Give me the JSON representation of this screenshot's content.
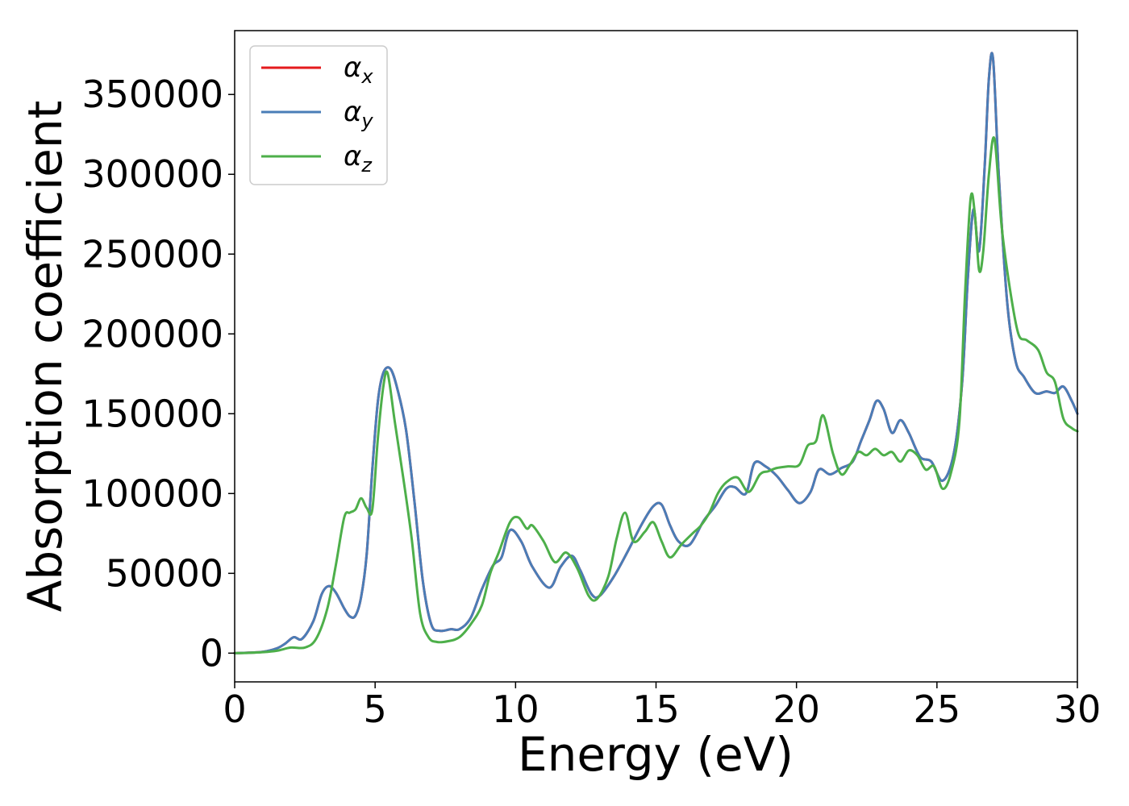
{
  "chart_data": {
    "type": "line",
    "title": "",
    "xlabel": "Energy (eV)",
    "ylabel": "Absorption coefficient",
    "xlim": [
      0,
      30
    ],
    "ylim": [
      -18000,
      390000
    ],
    "xticks": [
      0,
      5,
      10,
      15,
      20,
      25,
      30
    ],
    "yticks": [
      0,
      50000,
      100000,
      150000,
      200000,
      250000,
      300000,
      350000
    ],
    "grid": false,
    "legend_position": "top-left",
    "series": [
      {
        "name": "αx",
        "legend_base": "α",
        "legend_sub": "x",
        "color": "#e41a1c",
        "x": [
          0,
          0.5,
          1.0,
          1.5,
          1.8,
          2.1,
          2.4,
          2.8,
          3.1,
          3.35,
          3.6,
          3.9,
          4.1,
          4.3,
          4.5,
          4.7,
          4.9,
          5.1,
          5.3,
          5.55,
          5.8,
          6.1,
          6.4,
          6.7,
          7.0,
          7.3,
          7.7,
          8.0,
          8.4,
          8.8,
          9.2,
          9.5,
          9.8,
          10.2,
          10.6,
          11.2,
          11.6,
          12.0,
          12.3,
          12.7,
          13.0,
          13.5,
          14.0,
          14.5,
          14.9,
          15.2,
          15.5,
          15.8,
          16.2,
          16.7,
          17.1,
          17.5,
          17.8,
          18.2,
          18.5,
          18.9,
          19.3,
          19.7,
          20.1,
          20.5,
          20.8,
          21.2,
          21.6,
          22.0,
          22.3,
          22.6,
          22.85,
          23.1,
          23.4,
          23.7,
          24.0,
          24.4,
          24.8,
          25.2,
          25.6,
          25.9,
          26.1,
          26.3,
          26.5,
          26.7,
          26.85,
          27.0,
          27.2,
          27.5,
          27.8,
          28.1,
          28.5,
          28.9,
          29.2,
          29.5,
          29.8,
          30.0
        ],
        "y": [
          0,
          300,
          800,
          3000,
          6000,
          10000,
          9000,
          20000,
          37000,
          42000,
          38000,
          28000,
          23000,
          23500,
          35000,
          62000,
          115000,
          158000,
          176000,
          178000,
          165000,
          140000,
          95000,
          45000,
          18000,
          14000,
          15000,
          15000,
          22000,
          40000,
          55000,
          60000,
          77000,
          70000,
          54000,
          41000,
          54000,
          61000,
          52000,
          37000,
          36000,
          48000,
          64000,
          81000,
          92000,
          93000,
          80000,
          70000,
          68000,
          83000,
          92000,
          103000,
          104000,
          100000,
          119000,
          117000,
          111000,
          102000,
          94000,
          101000,
          115000,
          112000,
          116000,
          120000,
          133000,
          146000,
          158000,
          153000,
          138000,
          146000,
          138000,
          123000,
          120000,
          108000,
          125000,
          170000,
          235000,
          278000,
          252000,
          305000,
          360000,
          372000,
          300000,
          220000,
          183000,
          173000,
          163000,
          164000,
          163000,
          167000,
          158000,
          150000
        ]
      },
      {
        "name": "αy",
        "legend_base": "α",
        "legend_sub": "y",
        "color": "#4a7db7",
        "x": [
          0,
          0.5,
          1.0,
          1.5,
          1.8,
          2.1,
          2.4,
          2.8,
          3.1,
          3.35,
          3.6,
          3.9,
          4.1,
          4.3,
          4.5,
          4.7,
          4.9,
          5.1,
          5.3,
          5.55,
          5.8,
          6.1,
          6.4,
          6.7,
          7.0,
          7.3,
          7.7,
          8.0,
          8.4,
          8.8,
          9.2,
          9.5,
          9.8,
          10.2,
          10.6,
          11.2,
          11.6,
          12.0,
          12.3,
          12.7,
          13.0,
          13.5,
          14.0,
          14.5,
          14.9,
          15.2,
          15.5,
          15.8,
          16.2,
          16.7,
          17.1,
          17.5,
          17.8,
          18.2,
          18.5,
          18.9,
          19.3,
          19.7,
          20.1,
          20.5,
          20.8,
          21.2,
          21.6,
          22.0,
          22.3,
          22.6,
          22.85,
          23.1,
          23.4,
          23.7,
          24.0,
          24.4,
          24.8,
          25.2,
          25.6,
          25.9,
          26.1,
          26.3,
          26.5,
          26.7,
          26.85,
          27.0,
          27.2,
          27.5,
          27.8,
          28.1,
          28.5,
          28.9,
          29.2,
          29.5,
          29.8,
          30.0
        ],
        "y": [
          0,
          300,
          800,
          3000,
          6000,
          10000,
          9000,
          20000,
          37000,
          42000,
          38000,
          28000,
          23000,
          23500,
          35000,
          62000,
          115000,
          158000,
          176000,
          178000,
          165000,
          140000,
          95000,
          45000,
          18000,
          14000,
          15000,
          15000,
          22000,
          40000,
          55000,
          60000,
          77000,
          70000,
          54000,
          41000,
          54000,
          61000,
          52000,
          37000,
          36000,
          48000,
          64000,
          81000,
          92000,
          93000,
          80000,
          70000,
          68000,
          83000,
          92000,
          103000,
          104000,
          100000,
          119000,
          117000,
          111000,
          102000,
          94000,
          101000,
          115000,
          112000,
          116000,
          120000,
          133000,
          146000,
          158000,
          153000,
          138000,
          146000,
          138000,
          123000,
          120000,
          108000,
          125000,
          170000,
          235000,
          278000,
          252000,
          305000,
          360000,
          372000,
          300000,
          220000,
          183000,
          173000,
          163000,
          164000,
          163000,
          167000,
          158000,
          150000
        ]
      },
      {
        "name": "αz",
        "legend_base": "α",
        "legend_sub": "z",
        "color": "#4daf4a",
        "x": [
          0,
          0.5,
          1.0,
          1.5,
          2.0,
          2.5,
          2.9,
          3.3,
          3.6,
          3.9,
          4.1,
          4.3,
          4.5,
          4.7,
          4.9,
          5.1,
          5.3,
          5.45,
          5.7,
          6.0,
          6.3,
          6.6,
          6.9,
          7.2,
          7.6,
          8.0,
          8.4,
          8.8,
          9.1,
          9.4,
          9.8,
          10.1,
          10.4,
          10.6,
          11.0,
          11.4,
          11.8,
          12.2,
          12.6,
          12.9,
          13.3,
          13.6,
          13.9,
          14.2,
          14.6,
          14.9,
          15.2,
          15.5,
          15.9,
          16.3,
          16.6,
          16.9,
          17.2,
          17.5,
          17.9,
          18.3,
          18.7,
          19.0,
          19.3,
          19.7,
          20.1,
          20.4,
          20.7,
          20.95,
          21.3,
          21.6,
          21.9,
          22.2,
          22.5,
          22.8,
          23.1,
          23.4,
          23.7,
          24.0,
          24.3,
          24.6,
          24.9,
          25.2,
          25.5,
          25.8,
          26.0,
          26.2,
          26.35,
          26.5,
          26.65,
          26.85,
          27.05,
          27.3,
          27.6,
          27.9,
          28.2,
          28.6,
          28.9,
          29.2,
          29.5,
          29.8,
          30.0
        ],
        "y": [
          0,
          200,
          600,
          1500,
          3500,
          3500,
          9000,
          28000,
          55000,
          85000,
          88000,
          90000,
          97000,
          91000,
          90000,
          135000,
          168000,
          175000,
          145000,
          110000,
          72000,
          25000,
          10000,
          7000,
          7500,
          10000,
          18000,
          30000,
          50000,
          63000,
          82000,
          85000,
          78000,
          80000,
          70000,
          57000,
          63000,
          53000,
          36000,
          34000,
          48000,
          72000,
          88000,
          70000,
          76000,
          82000,
          70000,
          60000,
          68000,
          75000,
          80000,
          88000,
          100000,
          107000,
          110000,
          101000,
          112000,
          114000,
          116000,
          117000,
          118000,
          130000,
          133000,
          149000,
          125000,
          112000,
          118000,
          126000,
          124000,
          128000,
          124000,
          126000,
          120000,
          127000,
          124000,
          115000,
          117000,
          103000,
          113000,
          145000,
          225000,
          285000,
          275000,
          240000,
          252000,
          300000,
          322000,
          268000,
          228000,
          200000,
          196000,
          190000,
          176000,
          170000,
          147000,
          141000,
          139000
        ]
      }
    ]
  }
}
